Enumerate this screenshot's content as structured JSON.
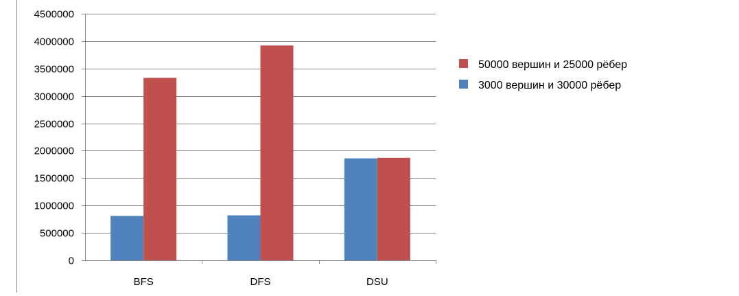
{
  "chart_data": {
    "type": "bar",
    "categories": [
      "BFS",
      "DFS",
      "DSU"
    ],
    "series": [
      {
        "name": "3000 вершин и 30000 рёбер",
        "values": [
          810000,
          820000,
          1860000
        ],
        "color": "#4F81BD"
      },
      {
        "name": "50000 вершин и 25000 рёбер",
        "values": [
          3330000,
          3920000,
          1870000
        ],
        "color": "#C0504D"
      }
    ],
    "ylim": [
      0,
      4500000
    ],
    "yticks": [
      0,
      500000,
      1000000,
      1500000,
      2000000,
      2500000,
      3000000,
      3500000,
      4000000,
      4500000
    ],
    "ytick_labels": [
      "0",
      "500000",
      "1000000",
      "1500000",
      "2000000",
      "2500000",
      "3000000",
      "3500000",
      "4000000",
      "4500000"
    ],
    "grid": true,
    "legend_position": "right",
    "legend_order": [
      1,
      0
    ],
    "title": "",
    "xlabel": "",
    "ylabel": ""
  }
}
